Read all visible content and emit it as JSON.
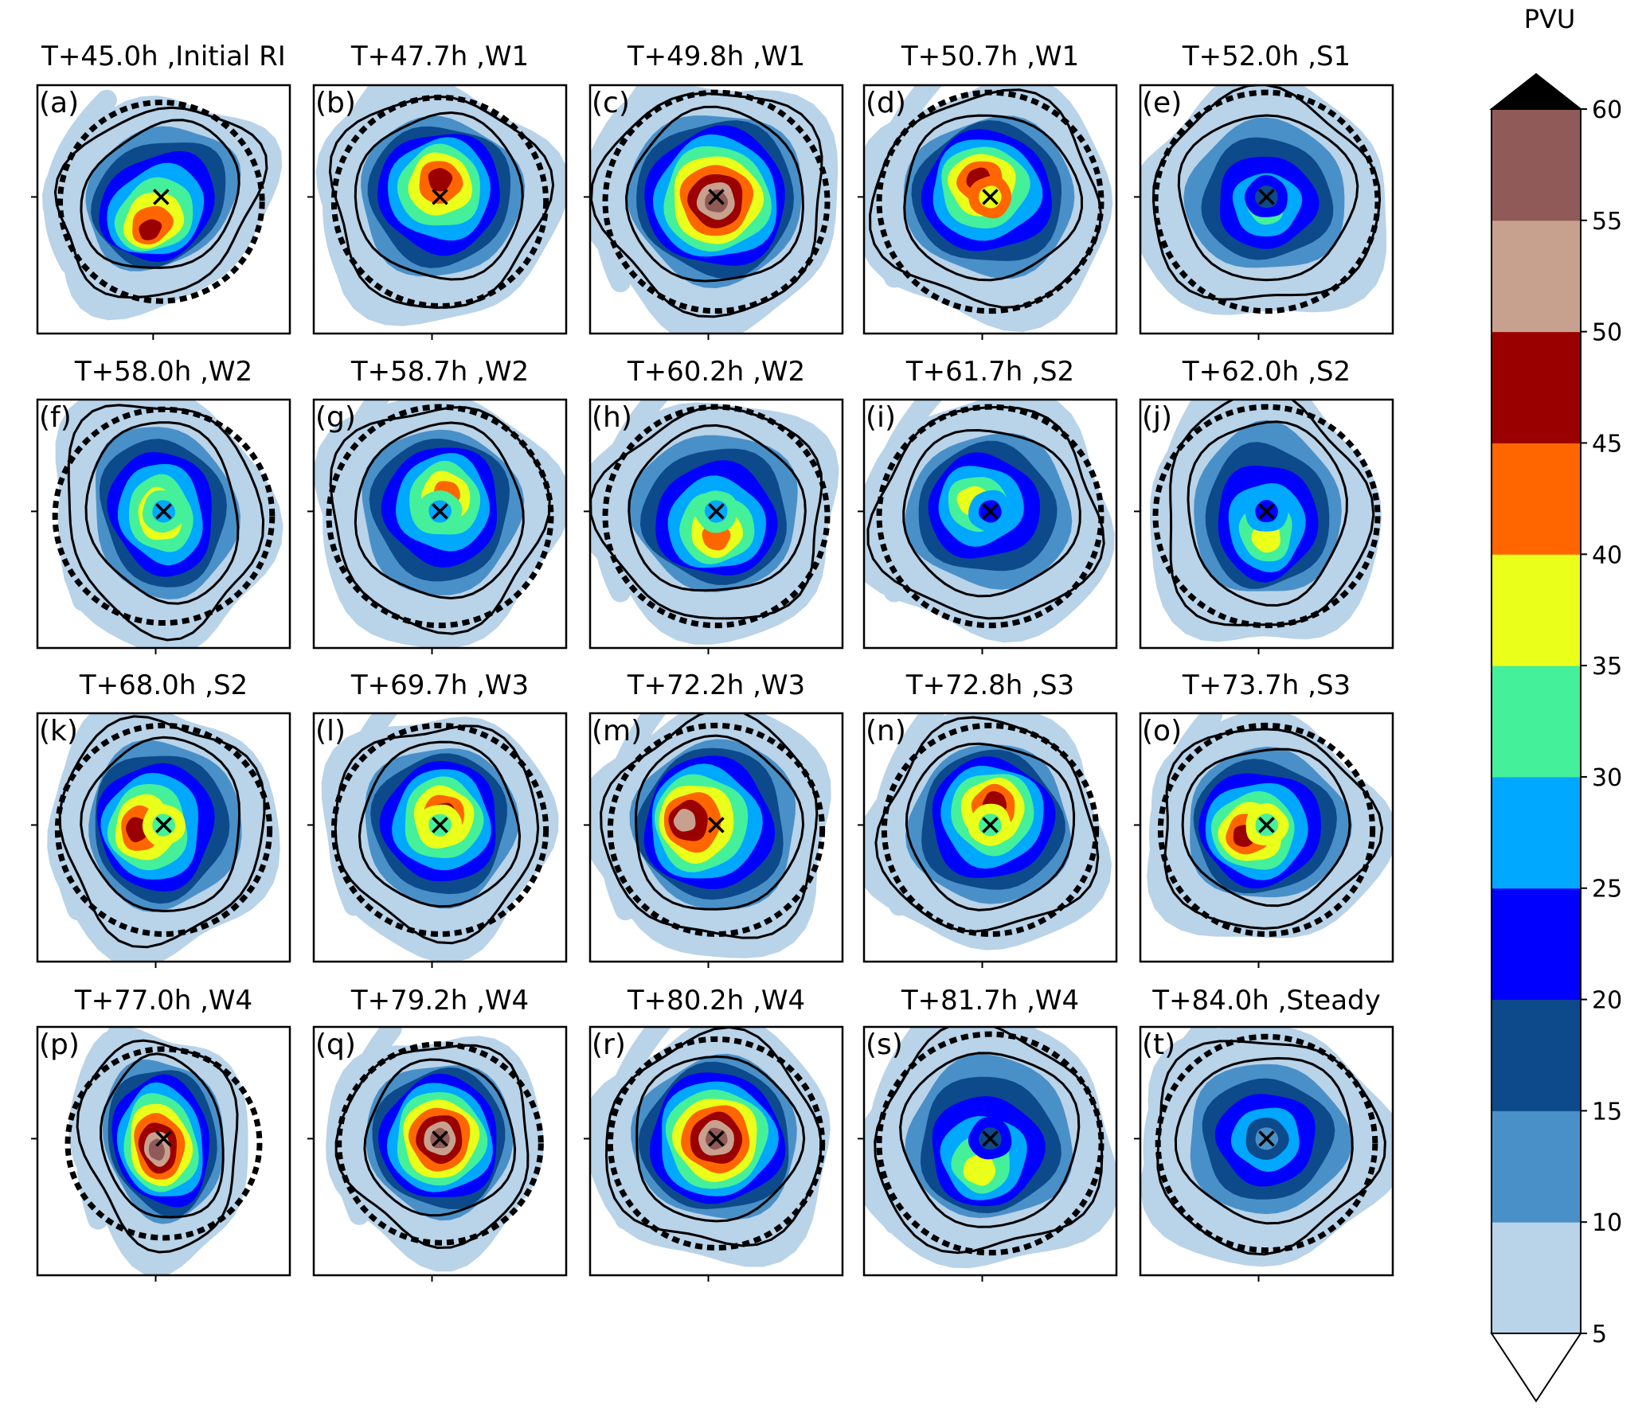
{
  "chart_data": {
    "type": "heatmap",
    "colorbar": {
      "title": "PVU",
      "levels": [
        5,
        10,
        15,
        20,
        25,
        30,
        35,
        40,
        45,
        50,
        55,
        60
      ],
      "tick_labels": [
        "5",
        "10",
        "15",
        "20",
        "25",
        "30",
        "35",
        "40",
        "45",
        "50",
        "55",
        "60"
      ],
      "colors": [
        "#b9d3e9",
        "#4a90c8",
        "#0d4a8b",
        "#0000ff",
        "#00a8ff",
        "#44f09a",
        "#eaff1a",
        "#ff6600",
        "#9b0000",
        "#c8a08e",
        "#8f5a57"
      ],
      "extend": "both",
      "over_color": "#000000",
      "under_color": "#ffffff"
    },
    "panels": [
      {
        "letter": "(a)",
        "title": "T+45.0h ,Initial RI",
        "time_h": 45.0,
        "phase": "Initial RI",
        "center": [
          0.49,
          0.45
        ],
        "peak": 45,
        "peak_off": [
          -0.05,
          0.15
        ],
        "ring": 0,
        "rx": 0.36,
        "ry": 0.3,
        "rot": -35,
        "dash_r": 0.4,
        "arm": 1
      },
      {
        "letter": "(b)",
        "title": "T+47.7h ,W1",
        "time_h": 47.7,
        "phase": "W1",
        "center": [
          0.5,
          0.45
        ],
        "peak": 45,
        "peak_off": [
          0,
          -0.08
        ],
        "ring": 0,
        "rx": 0.36,
        "ry": 0.36,
        "rot": 0,
        "dash_r": 0.42,
        "arm": 1
      },
      {
        "letter": "(c)",
        "title": "T+49.8h ,W1",
        "time_h": 49.8,
        "phase": "W1",
        "center": [
          0.5,
          0.45
        ],
        "peak": 55,
        "peak_off": [
          0,
          0.02
        ],
        "ring": 0,
        "rx": 0.38,
        "ry": 0.38,
        "rot": 0,
        "dash_r": 0.44,
        "arm": 1
      },
      {
        "letter": "(d)",
        "title": "T+50.7h ,W1",
        "time_h": 50.7,
        "phase": "W1",
        "center": [
          0.5,
          0.45
        ],
        "peak": 45,
        "peak_off": [
          -0.05,
          -0.08
        ],
        "ring": 1,
        "rx": 0.38,
        "ry": 0.36,
        "rot": 0,
        "dash_r": 0.44,
        "arm": 1
      },
      {
        "letter": "(e)",
        "title": "T+52.0h ,S1",
        "time_h": 52.0,
        "phase": "S1",
        "center": [
          0.5,
          0.45
        ],
        "peak": 30,
        "peak_off": [
          0,
          0.05
        ],
        "ring": 2,
        "rx": 0.38,
        "ry": 0.36,
        "rot": 0,
        "dash_r": 0.44,
        "arm": 0
      },
      {
        "letter": "(f)",
        "title": "T+58.0h ,W2",
        "time_h": 58.0,
        "phase": "W2",
        "center": [
          0.5,
          0.45
        ],
        "peak": 40,
        "peak_off": [
          -0.02,
          0.02
        ],
        "ring": 2,
        "rx": 0.32,
        "ry": 0.4,
        "rot": -15,
        "dash_r": 0.43,
        "arm": 1
      },
      {
        "letter": "(g)",
        "title": "T+58.7h ,W2",
        "time_h": 58.7,
        "phase": "W2",
        "center": [
          0.5,
          0.45
        ],
        "peak": 40,
        "peak_off": [
          0.03,
          -0.08
        ],
        "ring": 2,
        "rx": 0.36,
        "ry": 0.38,
        "rot": 0,
        "dash_r": 0.44,
        "arm": 1
      },
      {
        "letter": "(h)",
        "title": "T+60.2h ,W2",
        "time_h": 60.2,
        "phase": "W2",
        "center": [
          0.5,
          0.45
        ],
        "peak": 40,
        "peak_off": [
          0,
          0.12
        ],
        "ring": 2,
        "rx": 0.38,
        "ry": 0.36,
        "rot": 0,
        "dash_r": 0.44,
        "arm": 1
      },
      {
        "letter": "(i)",
        "title": "T+61.7h ,S2",
        "time_h": 61.7,
        "phase": "S2",
        "center": [
          0.5,
          0.45
        ],
        "peak": 35,
        "peak_off": [
          -0.08,
          -0.05
        ],
        "ring": 2,
        "rx": 0.38,
        "ry": 0.36,
        "rot": 0,
        "dash_r": 0.44,
        "arm": 1
      },
      {
        "letter": "(j)",
        "title": "T+62.0h ,S2",
        "time_h": 62.0,
        "phase": "S2",
        "center": [
          0.5,
          0.45
        ],
        "peak": 35,
        "peak_off": [
          0,
          0.12
        ],
        "ring": 2,
        "rx": 0.34,
        "ry": 0.4,
        "rot": 0,
        "dash_r": 0.44,
        "arm": 1
      },
      {
        "letter": "(k)",
        "title": "T+68.0h ,S2",
        "time_h": 68.0,
        "phase": "S2",
        "center": [
          0.5,
          0.45
        ],
        "peak": 45,
        "peak_off": [
          -0.12,
          0.02
        ],
        "ring": 2,
        "rx": 0.34,
        "ry": 0.38,
        "rot": 0,
        "dash_r": 0.42,
        "arm": 1
      },
      {
        "letter": "(l)",
        "title": "T+69.7h ,W3",
        "time_h": 69.7,
        "phase": "W3",
        "center": [
          0.5,
          0.45
        ],
        "peak": 45,
        "peak_off": [
          0.02,
          -0.05
        ],
        "ring": 2,
        "rx": 0.34,
        "ry": 0.36,
        "rot": 0,
        "dash_r": 0.42,
        "arm": 1
      },
      {
        "letter": "(m)",
        "title": "T+72.2h ,W3",
        "time_h": 72.2,
        "phase": "W3",
        "center": [
          0.5,
          0.45
        ],
        "peak": 50,
        "peak_off": [
          -0.14,
          -0.02
        ],
        "ring": 0,
        "rx": 0.36,
        "ry": 0.38,
        "rot": 0,
        "dash_r": 0.42,
        "arm": 1
      },
      {
        "letter": "(n)",
        "title": "T+72.8h ,S3",
        "time_h": 72.8,
        "phase": "S3",
        "center": [
          0.5,
          0.45
        ],
        "peak": 45,
        "peak_off": [
          0.02,
          -0.1
        ],
        "ring": 2,
        "rx": 0.36,
        "ry": 0.36,
        "rot": 0,
        "dash_r": 0.42,
        "arm": 1
      },
      {
        "letter": "(o)",
        "title": "T+73.7h ,S3",
        "time_h": 73.7,
        "phase": "S3",
        "center": [
          0.5,
          0.45
        ],
        "peak": 45,
        "peak_off": [
          -0.1,
          0.05
        ],
        "ring": 2,
        "rx": 0.36,
        "ry": 0.34,
        "rot": 0,
        "dash_r": 0.42,
        "arm": 1
      },
      {
        "letter": "(p)",
        "title": "T+77.0h ,W4",
        "time_h": 77.0,
        "phase": "W4",
        "center": [
          0.5,
          0.45
        ],
        "peak": 55,
        "peak_off": [
          -0.03,
          0.05
        ],
        "ring": 0,
        "rx": 0.26,
        "ry": 0.36,
        "rot": -10,
        "dash_r": 0.38,
        "arm": 1
      },
      {
        "letter": "(q)",
        "title": "T+79.2h ,W4",
        "time_h": 79.2,
        "phase": "W4",
        "center": [
          0.5,
          0.45
        ],
        "peak": 60,
        "peak_off": [
          0,
          0
        ],
        "ring": 0,
        "rx": 0.32,
        "ry": 0.34,
        "rot": 0,
        "dash_r": 0.4,
        "arm": 1
      },
      {
        "letter": "(r)",
        "title": "T+80.2h ,W4",
        "time_h": 80.2,
        "phase": "W4",
        "center": [
          0.5,
          0.45
        ],
        "peak": 55,
        "peak_off": [
          0,
          0
        ],
        "ring": 0,
        "rx": 0.36,
        "ry": 0.36,
        "rot": 0,
        "dash_r": 0.42,
        "arm": 1
      },
      {
        "letter": "(s)",
        "title": "T+81.7h ,W4",
        "time_h": 81.7,
        "phase": "W4",
        "center": [
          0.5,
          0.45
        ],
        "peak": 35,
        "peak_off": [
          -0.05,
          0.15
        ],
        "ring": 3,
        "rx": 0.38,
        "ry": 0.38,
        "rot": 0,
        "dash_r": 0.44,
        "arm": 1
      },
      {
        "letter": "(t)",
        "title": "T+84.0h ,Steady",
        "time_h": 84.0,
        "phase": "Steady",
        "center": [
          0.5,
          0.45
        ],
        "peak": 30,
        "peak_off": [
          0,
          0
        ],
        "ring": 3,
        "rx": 0.38,
        "ry": 0.36,
        "rot": 0,
        "dash_r": 0.43,
        "arm": 1
      }
    ]
  }
}
